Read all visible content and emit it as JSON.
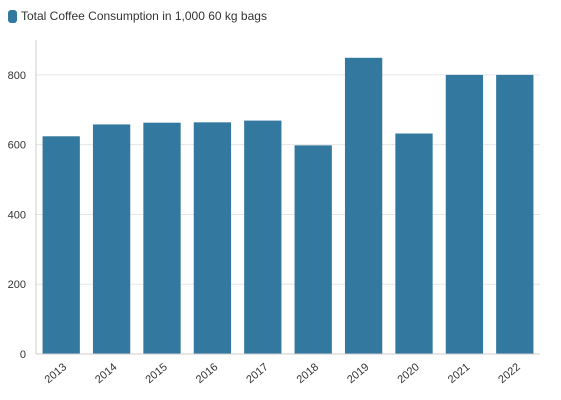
{
  "chart_data": {
    "type": "bar",
    "legend": {
      "label": "Total Coffee Consumption in 1,000 60 kg bags",
      "position": "top-left"
    },
    "series": [
      {
        "name": "Total Coffee Consumption in 1,000 60 kg bags",
        "color": "#33789f",
        "values": [
          624,
          658,
          663,
          664,
          669,
          598,
          849,
          632,
          800,
          800
        ]
      }
    ],
    "categories": [
      "2013",
      "2014",
      "2015",
      "2016",
      "2017",
      "2018",
      "2019",
      "2020",
      "2021",
      "2022"
    ],
    "title": "",
    "xlabel": "",
    "ylabel": "",
    "ylim": [
      0,
      900
    ],
    "yticks": [
      0,
      200,
      400,
      600,
      800
    ],
    "grid": true
  }
}
